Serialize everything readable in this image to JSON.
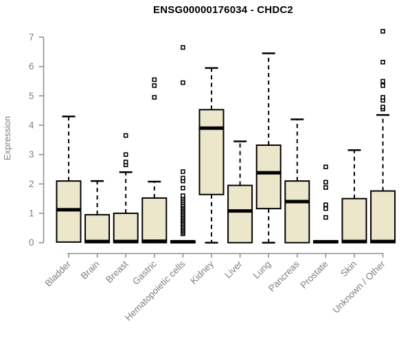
{
  "title": "ENSG00000176034 - CHDC2",
  "chart_data": {
    "type": "boxplot",
    "title": "ENSG00000176034 - CHDC2",
    "xlabel": "",
    "ylabel": "Expression",
    "ylim": [
      0,
      7.3
    ],
    "yticks": [
      0,
      1,
      2,
      3,
      4,
      5,
      6,
      7
    ],
    "grid": false,
    "legend": "none",
    "categories": [
      "Bladder",
      "Brain",
      "Breast",
      "Gastric",
      "Hematopoietic cells",
      "Kidney",
      "Liver",
      "Lung",
      "Pancreas",
      "Prostate",
      "Skin",
      "Unknown / Other"
    ],
    "series": [
      {
        "name": "Bladder",
        "whisker_low": 0.02,
        "q1": 0.02,
        "median": 1.12,
        "q3": 2.1,
        "whisker_high": 4.3,
        "outliers": []
      },
      {
        "name": "Brain",
        "whisker_low": 0.0,
        "q1": 0.0,
        "median": 0.04,
        "q3": 0.95,
        "whisker_high": 2.1,
        "outliers": []
      },
      {
        "name": "Breast",
        "whisker_low": 0.0,
        "q1": 0.0,
        "median": 0.04,
        "q3": 1.0,
        "whisker_high": 2.4,
        "outliers": [
          2.65,
          2.75,
          3.0,
          3.65
        ]
      },
      {
        "name": "Gastric",
        "whisker_low": 0.0,
        "q1": 0.0,
        "median": 0.05,
        "q3": 1.52,
        "whisker_high": 2.08,
        "outliers": [
          4.95,
          5.35,
          5.55
        ]
      },
      {
        "name": "Hematopoietic cells",
        "whisker_low": 0.0,
        "q1": 0.0,
        "median": 0.03,
        "q3": 0.06,
        "whisker_high": 0.06,
        "outliers": [
          0.3,
          0.35,
          0.4,
          0.45,
          0.5,
          0.55,
          0.6,
          0.65,
          0.7,
          0.75,
          0.8,
          0.85,
          0.9,
          0.95,
          1.0,
          1.05,
          1.1,
          1.15,
          1.2,
          1.25,
          1.3,
          1.36,
          1.42,
          1.48,
          1.54,
          1.6,
          1.86,
          2.1,
          2.2,
          2.42,
          5.45,
          6.65
        ]
      },
      {
        "name": "Kidney",
        "whisker_low": 0.0,
        "q1": 1.64,
        "median": 3.9,
        "q3": 4.53,
        "whisker_high": 5.95,
        "outliers": []
      },
      {
        "name": "Liver",
        "whisker_low": 0.0,
        "q1": 0.0,
        "median": 1.08,
        "q3": 1.95,
        "whisker_high": 3.45,
        "outliers": []
      },
      {
        "name": "Lung",
        "whisker_low": 0.0,
        "q1": 1.16,
        "median": 2.38,
        "q3": 3.32,
        "whisker_high": 6.45,
        "outliers": []
      },
      {
        "name": "Pancreas",
        "whisker_low": 0.0,
        "q1": 0.0,
        "median": 1.4,
        "q3": 2.1,
        "whisker_high": 4.2,
        "outliers": []
      },
      {
        "name": "Prostate",
        "whisker_low": 0.0,
        "q1": 0.0,
        "median": 0.03,
        "q3": 0.06,
        "whisker_high": 0.06,
        "outliers": [
          0.86,
          1.16,
          1.29,
          1.88,
          2.06,
          2.58
        ]
      },
      {
        "name": "Skin",
        "whisker_low": 0.0,
        "q1": 0.0,
        "median": 0.04,
        "q3": 1.5,
        "whisker_high": 3.15,
        "outliers": []
      },
      {
        "name": "Unknown / Other",
        "whisker_low": 0.0,
        "q1": 0.0,
        "median": 0.04,
        "q3": 1.76,
        "whisker_high": 4.35,
        "outliers": [
          4.55,
          4.62,
          4.85,
          4.95,
          5.35,
          5.5,
          6.15,
          7.2
        ]
      }
    ],
    "colors": {
      "box_fill": "#ECE6CB",
      "box_stroke": "#000000",
      "median": "#000000",
      "axis": "#8a8a8a",
      "tick_text": "#7e7e7e",
      "title_text": "#000000",
      "background": "#ffffff"
    }
  }
}
